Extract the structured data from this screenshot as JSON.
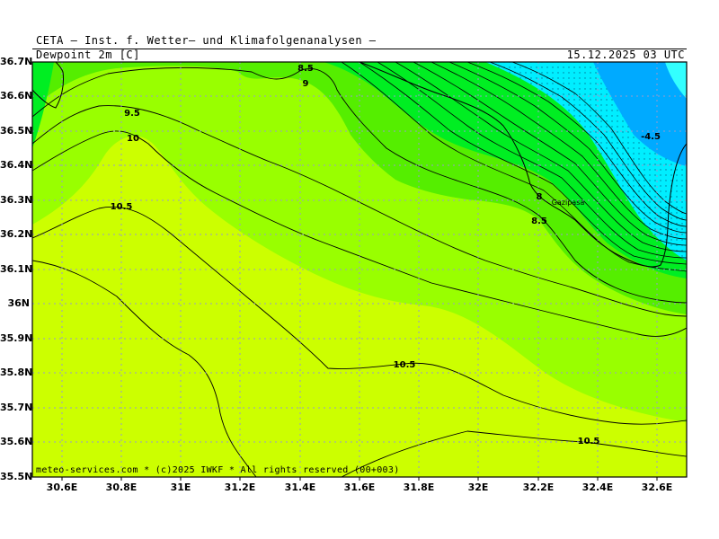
{
  "header": {
    "title": "CETA — Inst. f. Wetter— und Klimafolgenanalysen —",
    "parameter": "Dewpoint 2m [C]",
    "datetime": "15.12.2025 03 UTC"
  },
  "axes": {
    "latitude_labels": [
      "36.7N",
      "36.6N",
      "36.5N",
      "36.4N",
      "36.3N",
      "36.2N",
      "36.1N",
      "36N",
      "35.9N",
      "35.8N",
      "35.7N",
      "35.6N",
      "35.5N"
    ],
    "longitude_labels": [
      "30.6E",
      "30.8E",
      "31E",
      "31.2E",
      "31.4E",
      "31.6E",
      "31.8E",
      "32E",
      "32.2E",
      "32.4E",
      "32.6E"
    ]
  },
  "contour_labels": [
    "8.5",
    "9",
    "9.5",
    "10",
    "10.5",
    "10.5",
    "10.5",
    "8",
    "8.5",
    "-4.5"
  ],
  "place_labels": [
    "Gazipasa"
  ],
  "colors": {
    "yellow_green": "#ccff00",
    "light_green": "#99ff00",
    "green": "#55ee00",
    "bright_green": "#00ee22",
    "cyan": "#00eeff",
    "light_cyan": "#33ffff",
    "blue": "#00aaff",
    "grid": "#9999cc",
    "contour": "#000000"
  },
  "footer": {
    "credit": "meteo-services.com * (c)2025 IWKF * All rights reserved (00+003)"
  }
}
